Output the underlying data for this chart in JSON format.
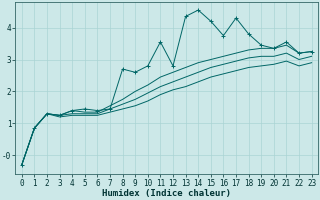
{
  "xlabel": "Humidex (Indice chaleur)",
  "ylabel": "",
  "xlim": [
    -0.5,
    23.5
  ],
  "ylim": [
    -0.6,
    4.8
  ],
  "bg_color": "#cce8e8",
  "grid_color": "#aad4d4",
  "line_color": "#006666",
  "series": [
    {
      "x": [
        0,
        1,
        2,
        3,
        4,
        5,
        6,
        7,
        8,
        9,
        10,
        11,
        12,
        13,
        14,
        15,
        16,
        17,
        18,
        19,
        20,
        21,
        22,
        23
      ],
      "y": [
        -0.3,
        0.85,
        1.3,
        1.25,
        1.4,
        1.45,
        1.4,
        1.45,
        2.7,
        2.6,
        2.8,
        3.55,
        2.8,
        4.35,
        4.55,
        4.2,
        3.75,
        4.3,
        3.8,
        3.45,
        3.35,
        3.55,
        3.2,
        3.25
      ],
      "marker": true
    },
    {
      "x": [
        0,
        1,
        2,
        3,
        4,
        5,
        6,
        7,
        8,
        9,
        10,
        11,
        12,
        13,
        14,
        15,
        16,
        17,
        18,
        19,
        20,
        21,
        22,
        23
      ],
      "y": [
        -0.3,
        0.85,
        1.3,
        1.25,
        1.4,
        1.35,
        1.35,
        1.55,
        1.75,
        2.0,
        2.2,
        2.45,
        2.6,
        2.75,
        2.9,
        3.0,
        3.1,
        3.2,
        3.3,
        3.35,
        3.35,
        3.45,
        3.2,
        3.25
      ],
      "marker": false
    },
    {
      "x": [
        0,
        1,
        2,
        3,
        4,
        5,
        6,
        7,
        8,
        9,
        10,
        11,
        12,
        13,
        14,
        15,
        16,
        17,
        18,
        19,
        20,
        21,
        22,
        23
      ],
      "y": [
        -0.3,
        0.85,
        1.3,
        1.25,
        1.3,
        1.3,
        1.3,
        1.45,
        1.6,
        1.75,
        1.95,
        2.15,
        2.3,
        2.45,
        2.6,
        2.75,
        2.85,
        2.95,
        3.05,
        3.1,
        3.1,
        3.2,
        3.0,
        3.1
      ],
      "marker": false
    },
    {
      "x": [
        0,
        1,
        2,
        3,
        4,
        5,
        6,
        7,
        8,
        9,
        10,
        11,
        12,
        13,
        14,
        15,
        16,
        17,
        18,
        19,
        20,
        21,
        22,
        23
      ],
      "y": [
        -0.3,
        0.85,
        1.3,
        1.2,
        1.25,
        1.25,
        1.25,
        1.35,
        1.45,
        1.55,
        1.7,
        1.9,
        2.05,
        2.15,
        2.3,
        2.45,
        2.55,
        2.65,
        2.75,
        2.8,
        2.85,
        2.95,
        2.8,
        2.9
      ],
      "marker": false
    }
  ],
  "xticks": [
    0,
    1,
    2,
    3,
    4,
    5,
    6,
    7,
    8,
    9,
    10,
    11,
    12,
    13,
    14,
    15,
    16,
    17,
    18,
    19,
    20,
    21,
    22,
    23
  ],
  "yticks": [
    0,
    1,
    2,
    3,
    4
  ],
  "ytick_labels": [
    "-0",
    "1",
    "2",
    "3",
    "4"
  ],
  "tick_fontsize": 5.5,
  "label_fontsize": 6.5
}
